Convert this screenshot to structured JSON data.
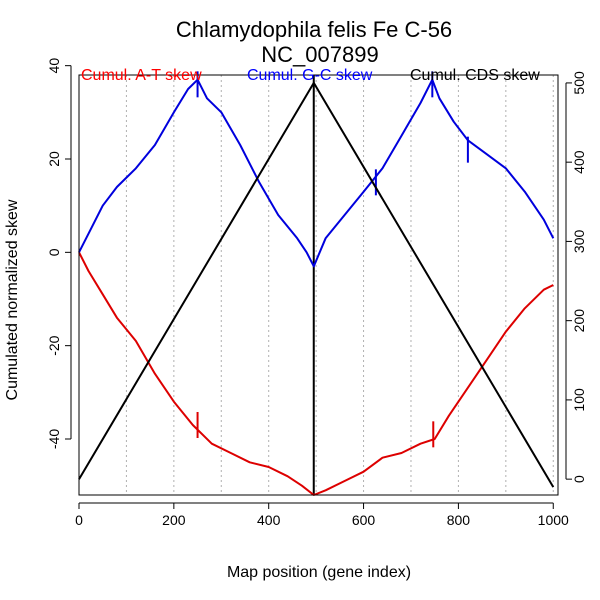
{
  "chart_data": {
    "type": "line",
    "title": "Chlamydophila felis Fe C-56",
    "subtitle": "NC_007899",
    "xlabel": "Map position (gene index)",
    "ylabel": "Cumulated normalized skew",
    "xlim": [
      0,
      1010
    ],
    "ylim": [
      -52,
      38
    ],
    "y2lim": [
      -20,
      510
    ],
    "x_ticks": [
      0,
      200,
      400,
      600,
      800,
      1000
    ],
    "y_ticks": [
      -40,
      -20,
      0,
      20,
      40
    ],
    "y2_ticks": [
      0,
      100,
      200,
      300,
      400,
      500
    ],
    "grid_x": [
      100,
      200,
      300,
      400,
      500,
      600,
      700,
      800,
      900,
      1000
    ],
    "legend": [
      {
        "label": "Cumul. A-T skew",
        "color": "#ff0000"
      },
      {
        "label": "Cumul. G-C skew",
        "color": "#0000ff"
      },
      {
        "label": "Cumul. CDS skew",
        "color": "#000000"
      }
    ],
    "divider_x": 495,
    "series": [
      {
        "name": "Cumul. A-T skew",
        "color": "#dd0000",
        "axis": "left",
        "x": [
          0,
          20,
          50,
          80,
          120,
          160,
          200,
          240,
          280,
          320,
          360,
          400,
          440,
          470,
          495,
          520,
          560,
          600,
          640,
          680,
          720,
          750,
          780,
          820,
          860,
          900,
          940,
          980,
          1000
        ],
        "y": [
          0,
          -4,
          -9,
          -14,
          -19,
          -26,
          -32,
          -37,
          -41,
          -43,
          -45,
          -46,
          -48,
          -50,
          -52,
          -51,
          -49,
          -47,
          -44,
          -43,
          -41,
          -40,
          -35,
          -29,
          -23,
          -17,
          -12,
          -8,
          -7
        ],
        "markers": [
          {
            "x": 250,
            "y": -37
          },
          {
            "x": 747,
            "y": -39
          }
        ]
      },
      {
        "name": "Cumul. G-C skew",
        "color": "#0000dd",
        "axis": "left",
        "x": [
          0,
          20,
          50,
          80,
          120,
          160,
          200,
          230,
          250,
          270,
          300,
          340,
          380,
          420,
          460,
          480,
          495,
          520,
          560,
          600,
          640,
          680,
          720,
          745,
          760,
          790,
          820,
          860,
          900,
          940,
          980,
          1000
        ],
        "y": [
          0,
          4,
          10,
          14,
          18,
          23,
          30,
          35,
          37,
          33,
          30,
          23,
          15,
          8,
          3,
          0,
          -3,
          3,
          8,
          13,
          18,
          25,
          32,
          37,
          33,
          28,
          24,
          21,
          18,
          13,
          7,
          3
        ],
        "markers": [
          {
            "x": 250,
            "y": 36
          },
          {
            "x": 745,
            "y": 36
          },
          {
            "x": 820,
            "y": 22
          },
          {
            "x": 626,
            "y": 15
          }
        ]
      },
      {
        "name": "Cumul. CDS skew",
        "color": "#000000",
        "axis": "right",
        "x": [
          0,
          495,
          1000
        ],
        "y": [
          0,
          500,
          -10
        ]
      }
    ]
  }
}
